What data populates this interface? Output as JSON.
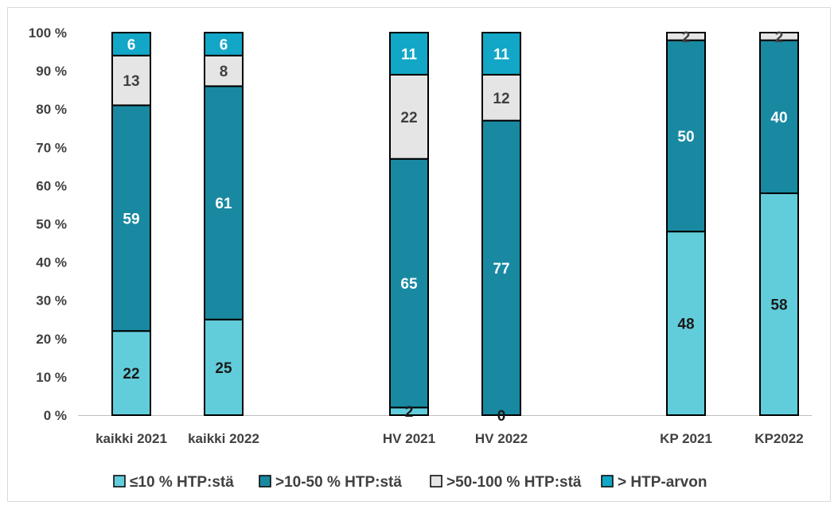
{
  "chart_data": {
    "type": "bar",
    "stacked": true,
    "categories": [
      "kaikki 2021",
      "kaikki 2022",
      "HV 2021",
      "HV 2022",
      "KP 2021",
      "KP2022"
    ],
    "series": [
      {
        "name": "≤10 % HTP:stä",
        "color": "#62cdda",
        "label_color": "#1a1a1a",
        "values": [
          22,
          25,
          2,
          0,
          48,
          58
        ]
      },
      {
        "name": ">10-50 % HTP:stä",
        "color": "#1989a2",
        "label_color": "#ffffff",
        "values": [
          59,
          61,
          65,
          77,
          50,
          40
        ]
      },
      {
        "name": ">50-100 % HTP:stä",
        "color": "#e5e5e5",
        "label_color": "#404040",
        "values": [
          13,
          8,
          22,
          12,
          2,
          2
        ]
      },
      {
        "name": "> HTP-arvon",
        "color": "#12a7c6",
        "label_color": "#ffffff",
        "values": [
          6,
          6,
          11,
          11,
          0,
          0
        ]
      }
    ],
    "y_ticks": [
      "0 %",
      "10 %",
      "20 %",
      "30 %",
      "40 %",
      "50 %",
      "60 %",
      "70 %",
      "80 %",
      "90 %",
      "100 %"
    ],
    "ylim": [
      0,
      100
    ],
    "title": "",
    "xlabel": "",
    "ylabel": "",
    "grid": false,
    "legend_position": "bottom"
  }
}
